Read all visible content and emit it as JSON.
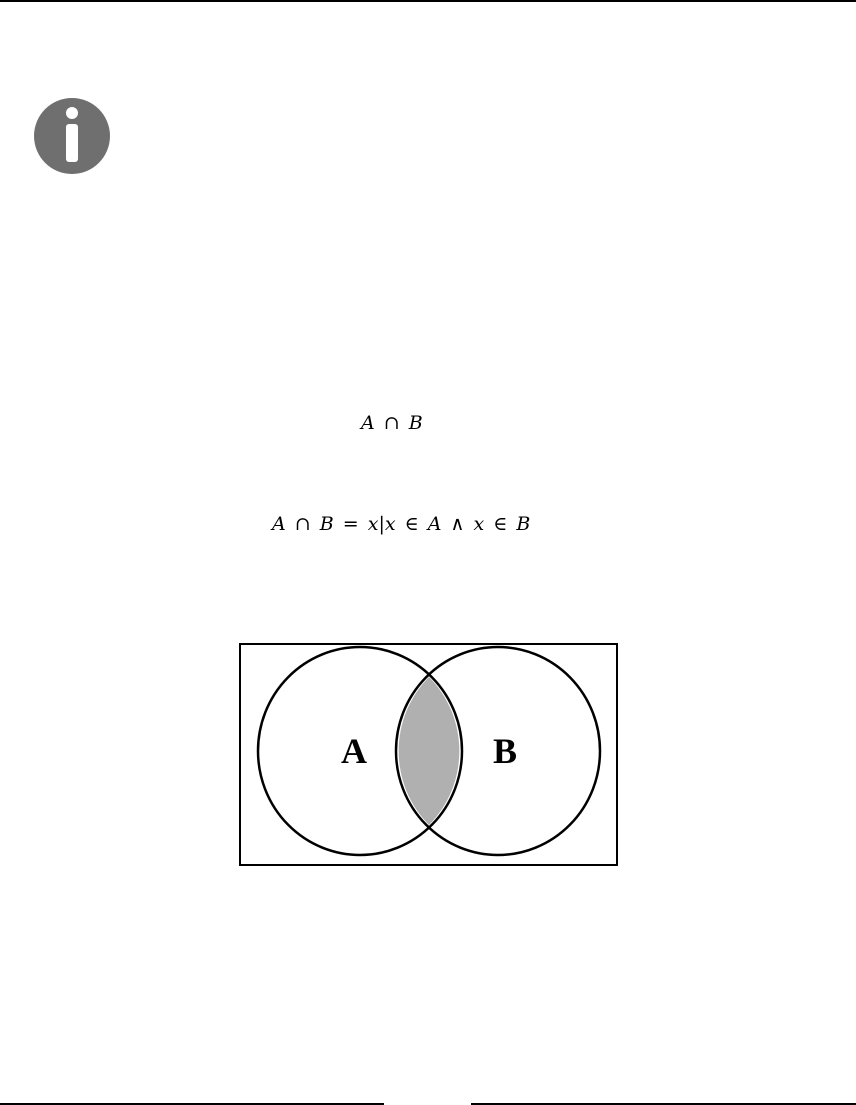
{
  "icons": {
    "info": "info-icon"
  },
  "colors": {
    "icon_fill": "#6f6f6f",
    "intersection_fill": "#b0b0b0",
    "lines": "#000000"
  },
  "formula_short": {
    "a": "A",
    "op": "∩",
    "b": "B"
  },
  "formula_definition": {
    "a": "A",
    "op_cap": "∩",
    "b": "B",
    "op_eq": "=",
    "x1": "x",
    "bar": "|",
    "x2": "x",
    "op_in1": "∈",
    "a2": "A",
    "op_and": "∧",
    "x3": "x",
    "op_in2": "∈",
    "b2": "B"
  },
  "venn": {
    "label_a": "A",
    "label_b": "B"
  }
}
